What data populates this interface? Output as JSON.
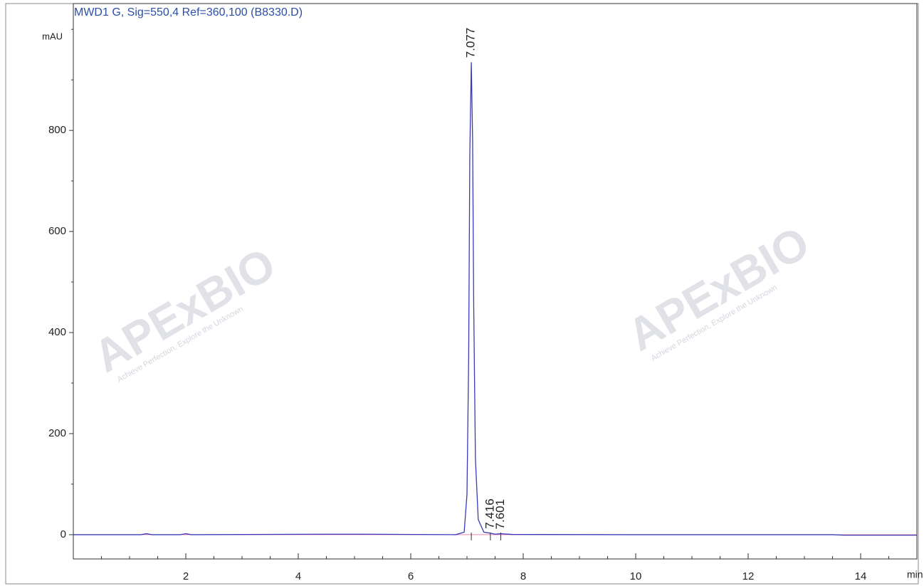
{
  "chart_data": {
    "type": "line",
    "title": "MWD1 G, Sig=550,4 Ref=360,100 (B8330.D)",
    "y_label": "mAU",
    "x_label": "min",
    "xlim": [
      0,
      15
    ],
    "ylim": [
      -48,
      1051
    ],
    "xticks": [
      2,
      4,
      6,
      8,
      10,
      12,
      14
    ],
    "xminorticks": [
      0.5,
      1,
      1.5,
      2.5,
      3,
      3.5,
      4.5,
      5,
      5.5,
      6.5,
      7,
      7.5,
      8.5,
      9,
      9.5,
      10.5,
      11,
      11.5,
      12.5,
      13,
      13.5,
      14.5
    ],
    "yticks": [
      0,
      200,
      400,
      600,
      800
    ],
    "yminorticks": [
      100,
      300,
      500,
      700,
      900,
      1000
    ],
    "series": [
      {
        "name": "MWD1 G",
        "color": "#3a3ab8",
        "x": [
          0,
          1.2,
          1.3,
          1.4,
          1.9,
          2.0,
          2.1,
          4.5,
          5.0,
          6.8,
          6.95,
          7.0,
          7.03,
          7.05,
          7.077,
          7.1,
          7.12,
          7.15,
          7.2,
          7.3,
          7.416,
          7.5,
          7.601,
          7.8,
          10,
          13.5,
          13.7,
          15
        ],
        "values": [
          0,
          0,
          2,
          0,
          0,
          2,
          0,
          1,
          1,
          0,
          5,
          80,
          350,
          750,
          935,
          780,
          450,
          150,
          30,
          5,
          3,
          1,
          2,
          0.5,
          0,
          0,
          -1,
          -1
        ]
      }
    ],
    "peak_times": [
      7.077,
      7.416,
      7.601
    ],
    "watermark": {
      "brand": "APExBIO",
      "slogan": "Achieve Perfection, Explore the Unknown"
    }
  }
}
